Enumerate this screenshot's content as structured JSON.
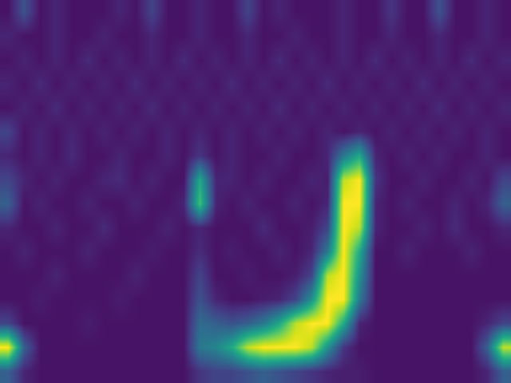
{
  "chart_data": {
    "type": "heatmap",
    "tick_labels": false,
    "zlim": [
      0,
      1
    ],
    "z": [
      [
        0.3,
        0.1,
        0.05,
        0.05,
        0.05,
        0.05,
        0.05,
        0.05,
        0.05,
        0.05,
        0.05,
        0.05,
        0.15,
        0.2,
        0.2,
        0.25,
        0.3,
        0.25,
        0.2,
        0.15,
        0.1,
        0.08,
        0.08,
        0.05,
        0.05,
        0.05,
        0.05,
        0.05,
        0.05,
        0.05,
        0.1,
        0.3
      ],
      [
        1.0,
        0.3,
        0.05,
        0.05,
        0.05,
        0.05,
        0.05,
        0.05,
        0.05,
        0.05,
        0.05,
        0.05,
        0.4,
        0.45,
        0.6,
        0.9,
        1.0,
        1.0,
        1.0,
        0.9,
        0.5,
        0.15,
        0.05,
        0.05,
        0.05,
        0.05,
        0.05,
        0.05,
        0.05,
        0.05,
        0.3,
        0.9
      ],
      [
        0.2,
        0.05,
        0.05,
        0.05,
        0.05,
        0.08,
        0.05,
        0.05,
        0.05,
        0.05,
        0.05,
        0.05,
        0.35,
        0.3,
        0.25,
        0.3,
        0.4,
        0.6,
        0.9,
        1.0,
        1.0,
        0.6,
        0.1,
        0.05,
        0.05,
        0.05,
        0.05,
        0.05,
        0.05,
        0.05,
        0.1,
        0.2
      ],
      [
        0.05,
        0.05,
        0.08,
        0.05,
        0.05,
        0.05,
        0.05,
        0.08,
        0.05,
        0.05,
        0.05,
        0.05,
        0.25,
        0.1,
        0.05,
        0.05,
        0.08,
        0.1,
        0.2,
        0.5,
        1.0,
        1.0,
        0.4,
        0.05,
        0.05,
        0.05,
        0.05,
        0.05,
        0.05,
        0.05,
        0.05,
        0.05
      ],
      [
        0.05,
        0.05,
        0.05,
        0.1,
        0.05,
        0.05,
        0.05,
        0.05,
        0.1,
        0.05,
        0.05,
        0.05,
        0.2,
        0.05,
        0.05,
        0.08,
        0.05,
        0.05,
        0.08,
        0.2,
        0.9,
        1.0,
        0.5,
        0.05,
        0.05,
        0.05,
        0.05,
        0.05,
        0.05,
        0.05,
        0.05,
        0.05
      ],
      [
        0.05,
        0.1,
        0.05,
        0.05,
        0.05,
        0.1,
        0.05,
        0.05,
        0.05,
        0.08,
        0.05,
        0.05,
        0.12,
        0.05,
        0.08,
        0.05,
        0.05,
        0.1,
        0.05,
        0.1,
        0.4,
        1.0,
        0.6,
        0.05,
        0.05,
        0.1,
        0.05,
        0.05,
        0.05,
        0.1,
        0.05,
        0.05
      ],
      [
        0.1,
        0.05,
        0.05,
        0.1,
        0.05,
        0.05,
        0.12,
        0.05,
        0.05,
        0.05,
        0.1,
        0.05,
        0.1,
        0.05,
        0.05,
        0.05,
        0.12,
        0.05,
        0.05,
        0.08,
        0.2,
        1.0,
        0.9,
        0.1,
        0.05,
        0.05,
        0.1,
        0.05,
        0.12,
        0.05,
        0.05,
        0.1
      ],
      [
        0.3,
        0.05,
        0.1,
        0.05,
        0.05,
        0.1,
        0.05,
        0.05,
        0.1,
        0.05,
        0.05,
        0.1,
        0.7,
        0.1,
        0.05,
        0.1,
        0.05,
        0.05,
        0.1,
        0.05,
        0.1,
        1.0,
        1.0,
        0.1,
        0.05,
        0.1,
        0.05,
        0.05,
        0.1,
        0.05,
        0.1,
        0.3
      ],
      [
        0.2,
        0.1,
        0.05,
        0.1,
        0.05,
        0.05,
        0.1,
        0.12,
        0.05,
        0.1,
        0.05,
        0.05,
        0.6,
        0.1,
        0.1,
        0.05,
        0.1,
        0.05,
        0.05,
        0.1,
        0.08,
        0.9,
        1.0,
        0.15,
        0.05,
        0.05,
        0.1,
        0.05,
        0.05,
        0.1,
        0.05,
        0.2
      ],
      [
        0.1,
        0.05,
        0.1,
        0.05,
        0.12,
        0.05,
        0.05,
        0.1,
        0.05,
        0.05,
        0.1,
        0.05,
        0.15,
        0.05,
        0.1,
        0.05,
        0.05,
        0.1,
        0.05,
        0.05,
        0.1,
        0.4,
        0.6,
        0.1,
        0.05,
        0.1,
        0.05,
        0.1,
        0.05,
        0.05,
        0.1,
        0.05
      ],
      [
        0.2,
        0.05,
        0.1,
        0.05,
        0.1,
        0.05,
        0.1,
        0.05,
        0.1,
        0.05,
        0.1,
        0.05,
        0.1,
        0.05,
        0.1,
        0.05,
        0.1,
        0.05,
        0.1,
        0.05,
        0.1,
        0.05,
        0.1,
        0.05,
        0.1,
        0.05,
        0.1,
        0.05,
        0.1,
        0.05,
        0.1,
        0.05
      ],
      [
        0.05,
        0.1,
        0.05,
        0.12,
        0.05,
        0.1,
        0.05,
        0.1,
        0.05,
        0.12,
        0.05,
        0.1,
        0.05,
        0.1,
        0.05,
        0.1,
        0.05,
        0.12,
        0.05,
        0.1,
        0.05,
        0.1,
        0.05,
        0.1,
        0.05,
        0.1,
        0.05,
        0.12,
        0.05,
        0.1,
        0.05,
        0.1
      ],
      [
        0.1,
        0.05,
        0.12,
        0.05,
        0.1,
        0.05,
        0.1,
        0.05,
        0.12,
        0.05,
        0.1,
        0.05,
        0.1,
        0.05,
        0.12,
        0.05,
        0.1,
        0.05,
        0.1,
        0.05,
        0.12,
        0.05,
        0.1,
        0.05,
        0.1,
        0.05,
        0.12,
        0.05,
        0.1,
        0.05,
        0.1,
        0.05
      ],
      [
        0.05,
        0.1,
        0.05,
        0.1,
        0.05,
        0.12,
        0.05,
        0.1,
        0.05,
        0.1,
        0.05,
        0.12,
        0.05,
        0.1,
        0.05,
        0.1,
        0.05,
        0.12,
        0.05,
        0.1,
        0.05,
        0.1,
        0.05,
        0.12,
        0.05,
        0.1,
        0.05,
        0.1,
        0.05,
        0.12,
        0.05,
        0.1
      ],
      [
        0.1,
        0.05,
        0.05,
        0.1,
        0.05,
        0.05,
        0.1,
        0.05,
        0.05,
        0.1,
        0.05,
        0.05,
        0.1,
        0.05,
        0.05,
        0.1,
        0.05,
        0.05,
        0.1,
        0.05,
        0.05,
        0.1,
        0.05,
        0.05,
        0.1,
        0.05,
        0.05,
        0.1,
        0.05,
        0.05,
        0.1,
        0.05
      ],
      [
        0.05,
        0.25,
        0.05,
        0.1,
        0.05,
        0.05,
        0.05,
        0.1,
        0.05,
        0.2,
        0.05,
        0.05,
        0.1,
        0.05,
        0.05,
        0.2,
        0.05,
        0.1,
        0.05,
        0.05,
        0.05,
        0.1,
        0.05,
        0.05,
        0.15,
        0.05,
        0.05,
        0.25,
        0.05,
        0.05,
        0.1,
        0.05
      ]
    ]
  }
}
